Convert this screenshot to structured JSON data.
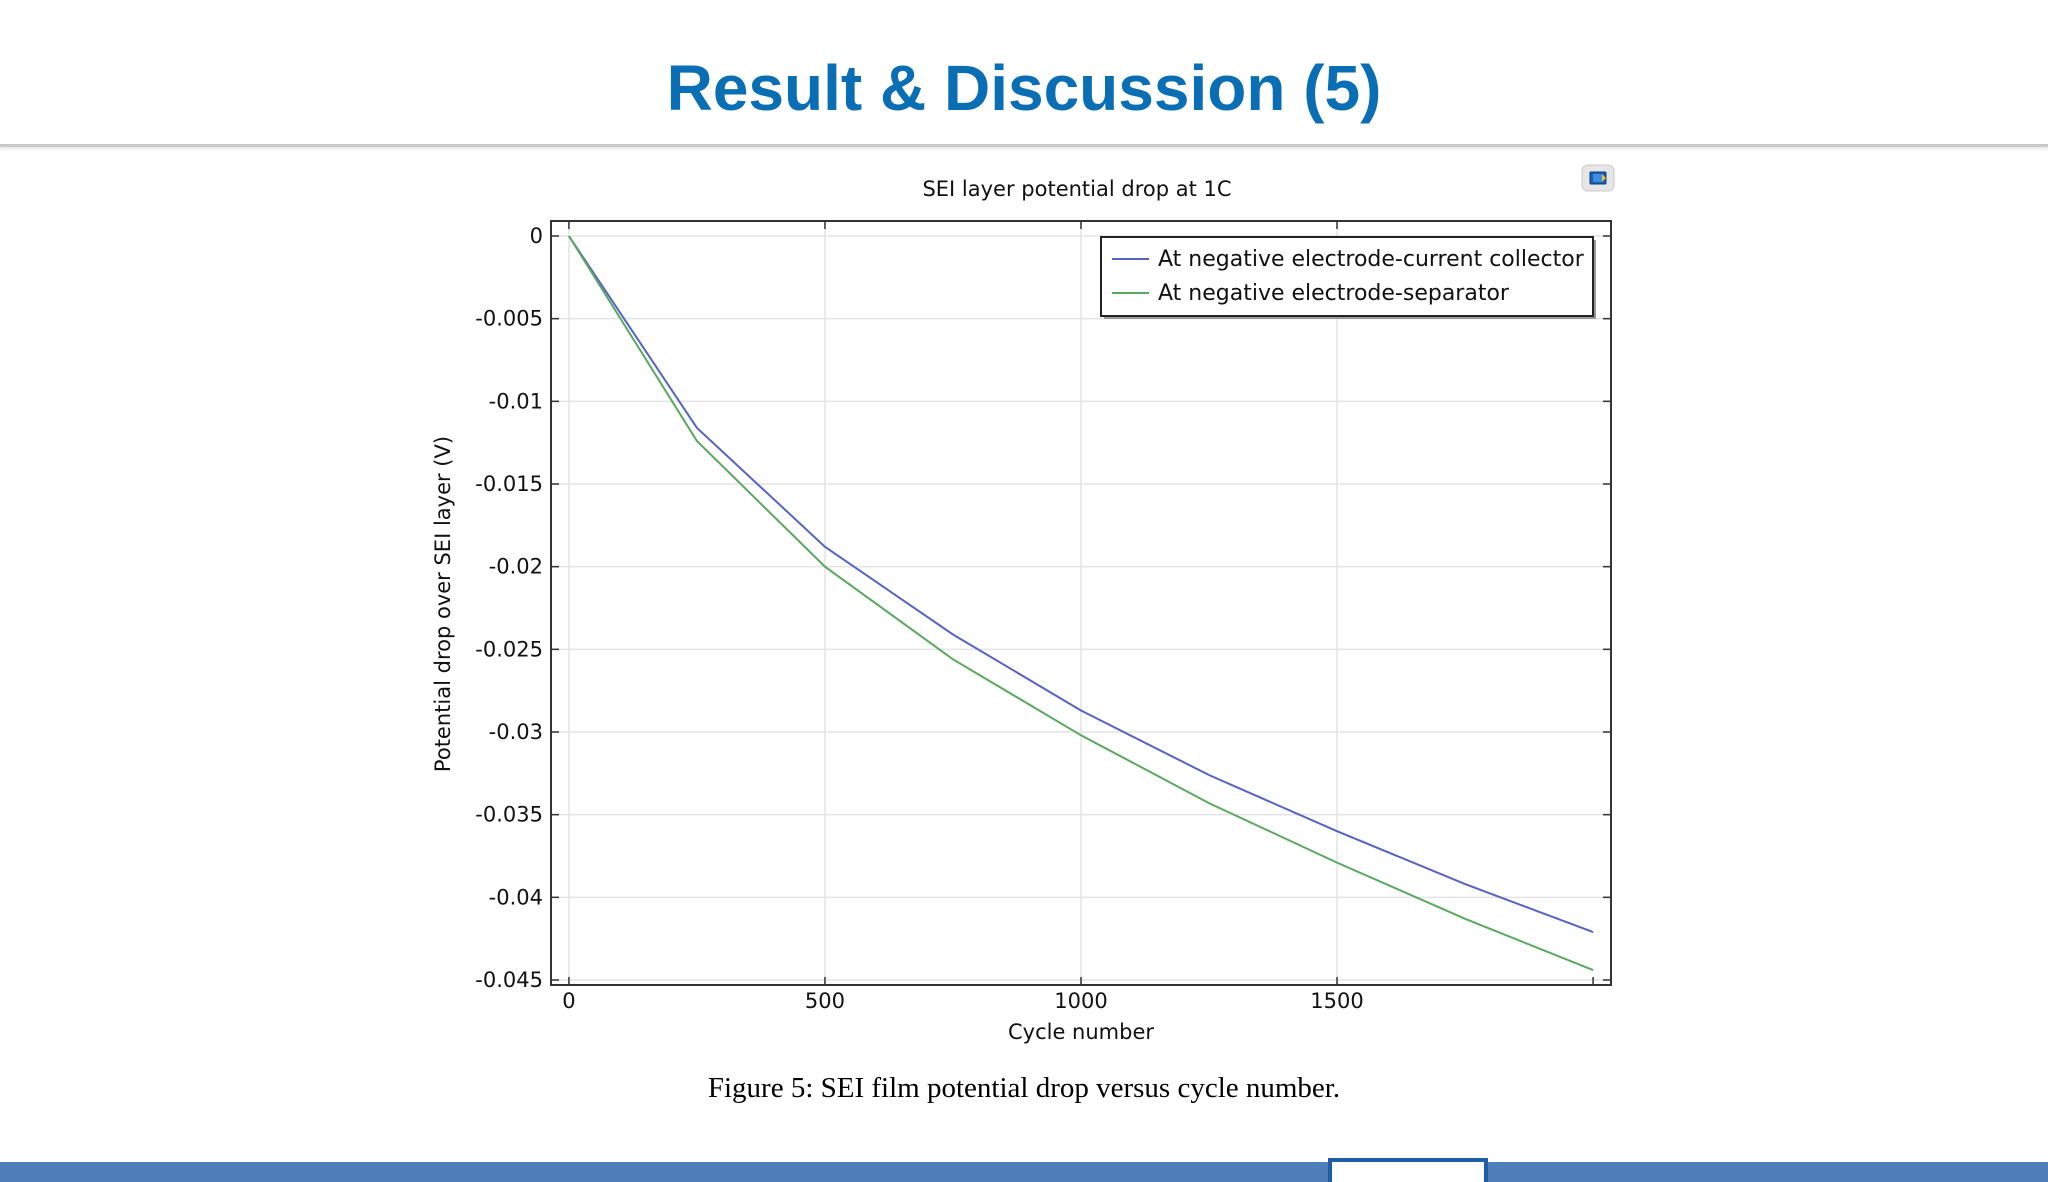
{
  "slide": {
    "title": "Result & Discussion (5)",
    "caption": "Figure 5: SEI film potential drop versus cycle number."
  },
  "colors": {
    "title": "#0a6eb5",
    "footer": "#4e7fbb",
    "series_collector": "#5563c4",
    "series_separator": "#5aa85f"
  },
  "icons": {
    "export": "comsol-export-icon"
  },
  "chart_data": {
    "type": "line",
    "title": "SEI layer potential drop at 1C",
    "xlabel": "Cycle number",
    "ylabel": "Potential drop over SEI layer (V)",
    "xlim": [
      -35,
      2035
    ],
    "ylim": [
      -0.045,
      0.0
    ],
    "xticks": [
      0,
      500,
      1000,
      1500
    ],
    "xtick_labels": [
      "0",
      "500",
      "1000",
      "1500"
    ],
    "yticks": [
      0,
      -0.005,
      -0.01,
      -0.015,
      -0.02,
      -0.025,
      -0.03,
      -0.035,
      -0.04,
      -0.045
    ],
    "ytick_labels": [
      "0",
      "-0.005",
      "-0.01",
      "-0.015",
      "-0.02",
      "-0.025",
      "-0.03",
      "-0.035",
      "-0.04",
      "-0.045"
    ],
    "grid": true,
    "legend_position": "top-right",
    "series": [
      {
        "name": "At negative electrode-current collector",
        "color": "#5563c4",
        "x": [
          0,
          250,
          500,
          750,
          1000,
          1250,
          1500,
          1750,
          2000
        ],
        "y": [
          0,
          -0.0116,
          -0.0188,
          -0.0241,
          -0.0287,
          -0.0326,
          -0.036,
          -0.0392,
          -0.0421
        ]
      },
      {
        "name": "At negative electrode-separator",
        "color": "#5aa85f",
        "x": [
          0,
          250,
          500,
          750,
          1000,
          1250,
          1500,
          1750,
          2000
        ],
        "y": [
          0,
          -0.0124,
          -0.02,
          -0.0256,
          -0.0302,
          -0.0343,
          -0.0379,
          -0.0413,
          -0.0444
        ]
      }
    ]
  }
}
